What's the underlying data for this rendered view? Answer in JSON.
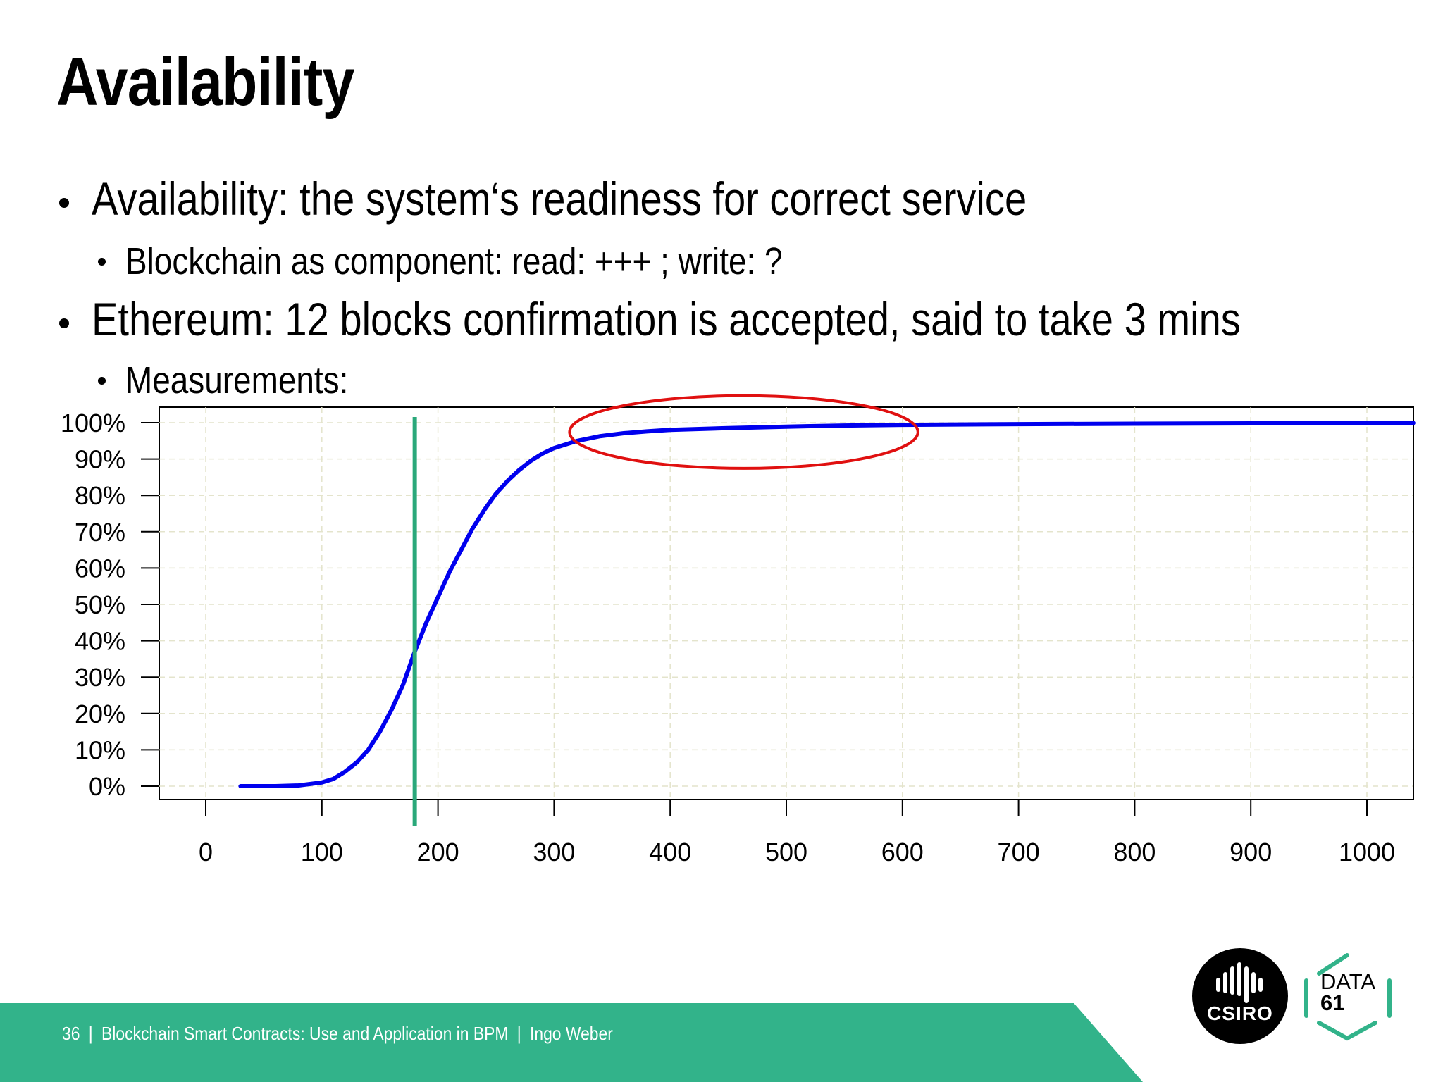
{
  "slide": {
    "title": "Availability",
    "bullets": [
      {
        "level": 1,
        "text": "Availability: the system‘s readiness for correct service"
      },
      {
        "level": 2,
        "text": "Blockchain as component: read: +++ ; write: ?"
      },
      {
        "level": 1,
        "text": "Ethereum: 12 blocks confirmation is accepted, said to take 3 mins"
      },
      {
        "level": 2,
        "text": "Measurements:"
      }
    ]
  },
  "chart_data": {
    "type": "line",
    "title": "",
    "xlabel": "",
    "ylabel": "",
    "xlim": [
      0,
      1000
    ],
    "ylim": [
      0,
      100
    ],
    "x_ticks": [
      "0",
      "100",
      "200",
      "300",
      "400",
      "500",
      "600",
      "700",
      "800",
      "900",
      "1000"
    ],
    "y_ticks": [
      "0%",
      "10%",
      "20%",
      "30%",
      "40%",
      "50%",
      "60%",
      "70%",
      "80%",
      "90%",
      "100%"
    ],
    "grid": true,
    "series": [
      {
        "color": "#0000ee",
        "x": [
          30,
          60,
          80,
          100,
          110,
          120,
          130,
          140,
          150,
          160,
          170,
          180,
          190,
          200,
          210,
          220,
          230,
          240,
          250,
          260,
          270,
          280,
          290,
          300,
          320,
          340,
          360,
          380,
          400,
          450,
          500,
          550,
          600,
          700,
          800,
          900,
          1040
        ],
        "y": [
          0,
          0,
          0.2,
          1,
          2,
          4,
          6.5,
          10,
          15,
          21,
          28,
          37,
          45,
          52,
          59,
          65,
          71,
          76,
          80.5,
          84,
          87,
          89.5,
          91.5,
          93,
          95,
          96.3,
          97.1,
          97.6,
          98,
          98.5,
          98.9,
          99.2,
          99.4,
          99.6,
          99.7,
          99.8,
          99.9
        ]
      }
    ],
    "annotations": [
      {
        "type": "vertical-line",
        "x": 180,
        "color": "#2aa87a"
      },
      {
        "type": "ellipse",
        "cx": 450,
        "cy": 98,
        "rx": 150,
        "ry": 10,
        "color": "#e01010"
      }
    ]
  },
  "footer": {
    "page_number": "36",
    "separator": "|",
    "presentation": "Blockchain Smart Contracts: Use and Application in BPM",
    "author": "Ingo Weber",
    "band_color": "#32b38a"
  },
  "logos": {
    "csiro": {
      "label": "CSIRO",
      "icon": "csiro-logo"
    },
    "data61": {
      "line1": "DATA",
      "line2": "61",
      "icon": "data61-logo"
    }
  }
}
